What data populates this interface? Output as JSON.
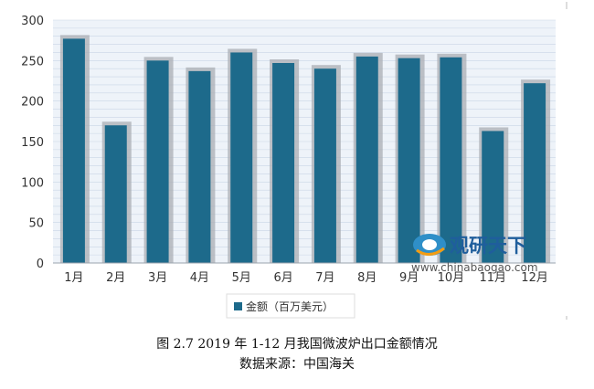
{
  "chart_data": {
    "type": "bar",
    "categories": [
      "1月",
      "2月",
      "3月",
      "4月",
      "5月",
      "6月",
      "7月",
      "8月",
      "9月",
      "10月",
      "11月",
      "12月"
    ],
    "values": [
      277,
      170,
      250,
      237,
      260,
      247,
      240,
      255,
      253,
      254,
      163,
      222
    ],
    "series": [
      {
        "name": "金额（百万美元）",
        "values": [
          277,
          170,
          250,
          237,
          260,
          247,
          240,
          255,
          253,
          254,
          163,
          222
        ]
      }
    ],
    "yticks": [
      "0",
      "50",
      "100",
      "150",
      "200",
      "250",
      "300"
    ],
    "ylim": [
      0,
      300
    ],
    "grid": true,
    "legend_position": "bottom",
    "bar_color": "#1d6a8b"
  },
  "watermark": {
    "logo_text": "观研天下",
    "url_text": "www.chinabaogao.com"
  },
  "caption": {
    "title": "图 2.7 2019 年 1-12 月我国微波炉出口金额情况",
    "source": "数据来源：中国海关"
  }
}
